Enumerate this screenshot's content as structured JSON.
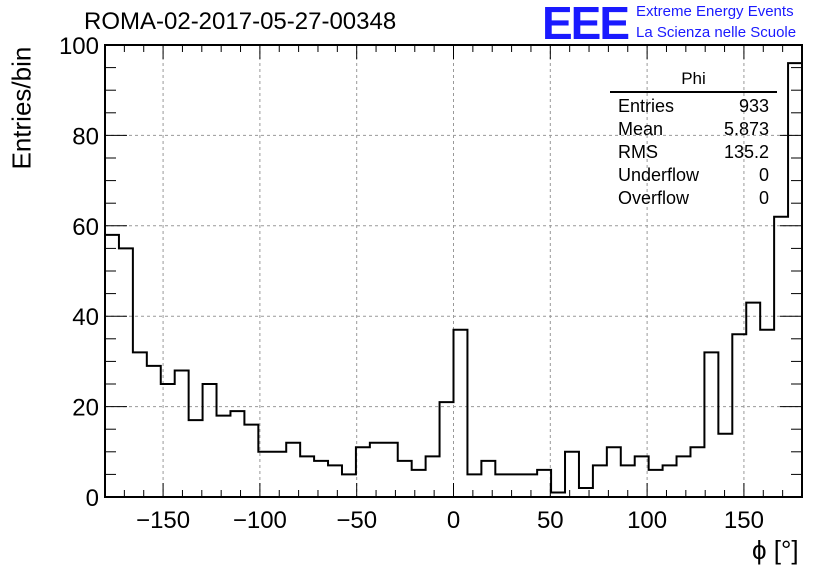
{
  "header": {
    "title": "ROMA-02-2017-05-27-00348",
    "logo_text": "EEE",
    "logo_line1": "Extreme Energy Events",
    "logo_line2": "La Scienza nelle Scuole"
  },
  "stats_box": {
    "name": "Phi",
    "rows": [
      {
        "label": "Entries",
        "value": "933"
      },
      {
        "label": "Mean",
        "value": "5.873"
      },
      {
        "label": "RMS",
        "value": "135.2"
      },
      {
        "label": "Underflow",
        "value": "0"
      },
      {
        "label": "Overflow",
        "value": "0"
      }
    ]
  },
  "chart_data": {
    "type": "bar",
    "style": "step-histogram",
    "title": "ROMA-02-2017-05-27-00348",
    "xlabel": "ϕ [°]",
    "ylabel": "Entries/bin",
    "xlim": [
      -180,
      180
    ],
    "ylim": [
      0,
      100
    ],
    "bin_width": 7.2,
    "xticks": [
      -150,
      -100,
      -50,
      0,
      50,
      100,
      150
    ],
    "yticks": [
      0,
      20,
      40,
      60,
      80,
      100
    ],
    "grid": true,
    "line_color": "#000000",
    "values": [
      58,
      55,
      32,
      29,
      25,
      28,
      17,
      25,
      18,
      19,
      16,
      10,
      10,
      12,
      9,
      8,
      7,
      5,
      11,
      12,
      12,
      8,
      6,
      9,
      21,
      37,
      5,
      8,
      5,
      5,
      5,
      6,
      1,
      10,
      2,
      7,
      11,
      7,
      9,
      6,
      7,
      9,
      11,
      32,
      14,
      36,
      43,
      37,
      62,
      96
    ]
  }
}
